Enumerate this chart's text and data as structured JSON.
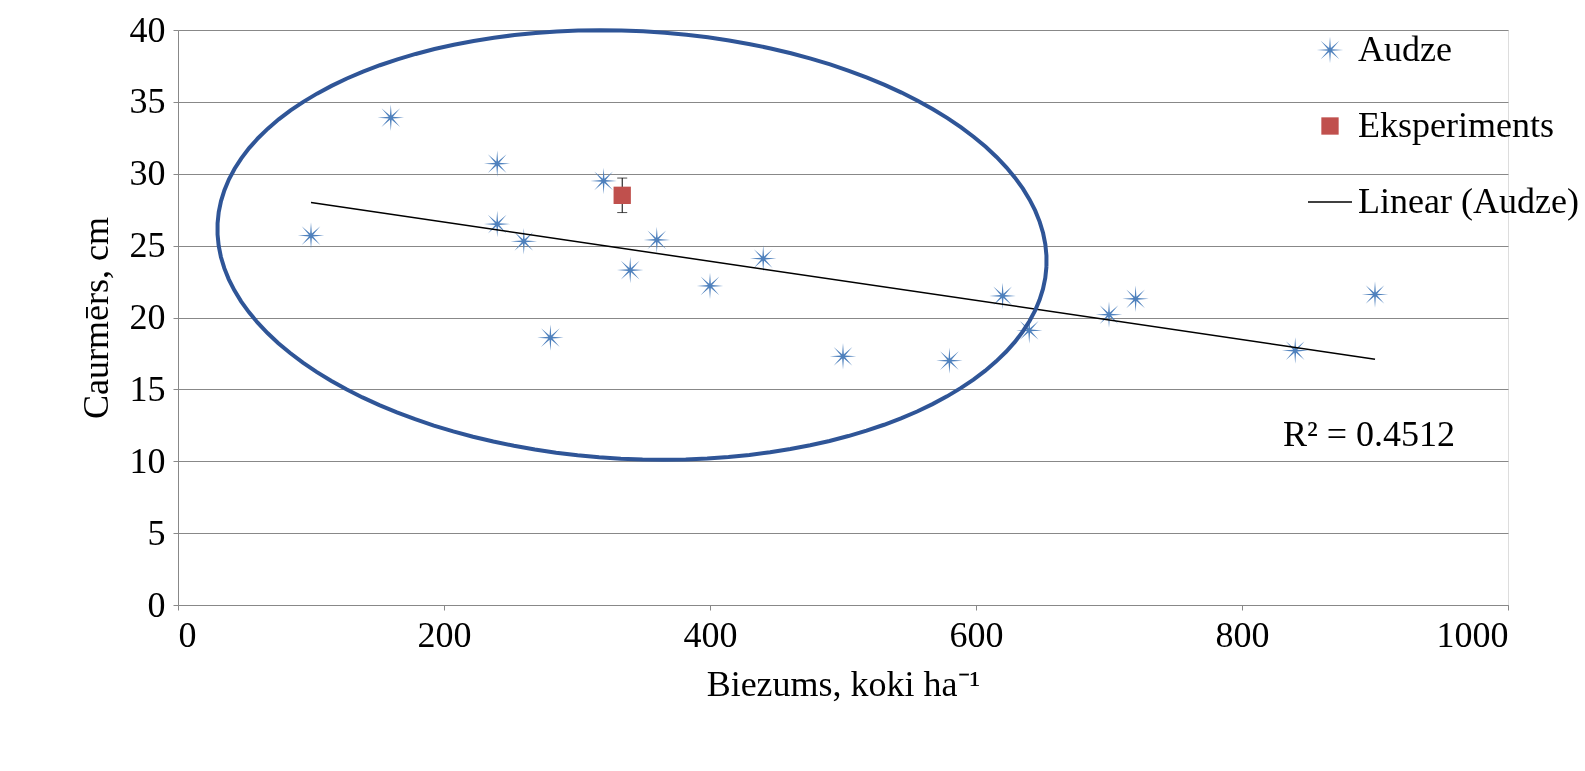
{
  "chart_data": {
    "type": "scatter",
    "xlabel": "Biezums, koki ha⁻¹",
    "ylabel": "Caurmērs, cm",
    "xlim": [
      0,
      1000
    ],
    "xticks": [
      0,
      200,
      400,
      600,
      800,
      1000
    ],
    "ylim": [
      0,
      40
    ],
    "yticks": [
      0,
      5,
      10,
      15,
      20,
      25,
      30,
      35,
      40
    ],
    "grid": "y",
    "legend": "top right",
    "series": [
      {
        "name": "Audze",
        "type": "scatter",
        "marker": "cross",
        "color": "#4f81bd",
        "x": [
          100,
          160,
          240,
          240,
          260,
          280,
          320,
          340,
          360,
          400,
          440,
          500,
          580,
          620,
          640,
          700,
          720,
          840,
          900
        ],
        "values": [
          25.7,
          33.9,
          30.7,
          26.5,
          25.3,
          18.6,
          29.5,
          23.3,
          25.4,
          22.2,
          24.1,
          17.3,
          17.0,
          21.5,
          19.1,
          20.2,
          21.3,
          17.7,
          21.6
        ]
      },
      {
        "name": "Eksperiments",
        "type": "scatter",
        "marker": "square",
        "color": "#c0504d",
        "x": [
          334
        ],
        "values": [
          28.5
        ],
        "errors": [
          1.2
        ]
      },
      {
        "name": "Linear (Audze)",
        "type": "line",
        "line_style": "solid",
        "color": "#000000",
        "x": [
          100,
          900
        ],
        "values": [
          28.0,
          17.1
        ]
      }
    ],
    "annotations": [
      "R² = 0.4512"
    ]
  }
}
